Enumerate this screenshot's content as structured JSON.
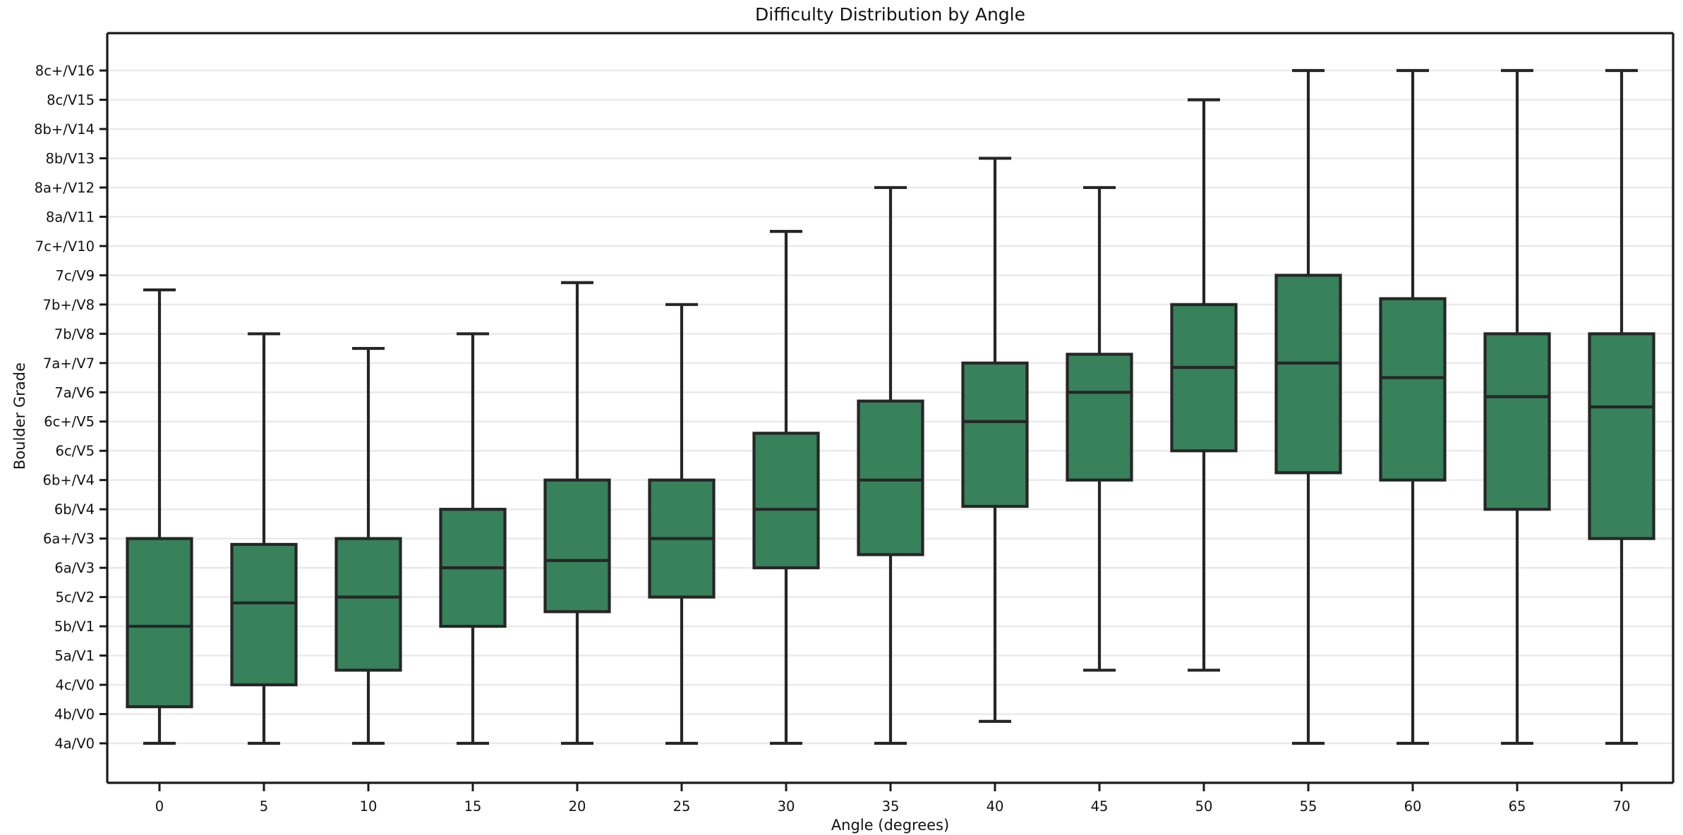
{
  "title": "Difficulty Distribution by Angle",
  "chart_data": {
    "type": "boxplot",
    "title": "Difficulty Distribution by Angle",
    "xlabel": "Angle (degrees)",
    "ylabel": "Boulder Grade",
    "grid": true,
    "legend": "none",
    "x_tick_labels": [
      "0",
      "5",
      "10",
      "15",
      "20",
      "25",
      "30",
      "35",
      "40",
      "45",
      "50",
      "55",
      "60",
      "65",
      "70"
    ],
    "y_tick_labels": [
      "4a/V0",
      "4b/V0",
      "4c/V0",
      "5a/V1",
      "5b/V1",
      "5c/V2",
      "6a/V3",
      "6a+/V3",
      "6b/V4",
      "6b+/V4",
      "6c/V5",
      "6c+/V5",
      "7a/V6",
      "7a+/V7",
      "7b/V8",
      "7b+/V8",
      "7c/V9",
      "7c+/V10",
      "8a/V11",
      "8a+/V12",
      "8b/V13",
      "8b+/V14",
      "8c/V15",
      "8c+/V16"
    ],
    "y_unit": "grade index, 0 = 4a/V0 up to 23 = 8c+/V16",
    "ylim": [
      -1.5,
      24.3
    ],
    "series": [
      {
        "angle": 0,
        "whisker_low": 0,
        "q1": 1.25,
        "median": 4.0,
        "q3": 7.0,
        "whisker_high": 15.5
      },
      {
        "angle": 5,
        "whisker_low": 0,
        "q1": 2.0,
        "median": 4.8,
        "q3": 6.8,
        "whisker_high": 14.0
      },
      {
        "angle": 10,
        "whisker_low": 0,
        "q1": 2.5,
        "median": 5.0,
        "q3": 7.0,
        "whisker_high": 13.5
      },
      {
        "angle": 15,
        "whisker_low": 0,
        "q1": 4.0,
        "median": 6.0,
        "q3": 8.0,
        "whisker_high": 14.0
      },
      {
        "angle": 20,
        "whisker_low": 0,
        "q1": 4.5,
        "median": 6.25,
        "q3": 9.0,
        "whisker_high": 15.75
      },
      {
        "angle": 25,
        "whisker_low": 0,
        "q1": 5.0,
        "median": 7.0,
        "q3": 9.0,
        "whisker_high": 15.0
      },
      {
        "angle": 30,
        "whisker_low": 0,
        "q1": 6.0,
        "median": 8.0,
        "q3": 10.6,
        "whisker_high": 17.5
      },
      {
        "angle": 35,
        "whisker_low": 0,
        "q1": 6.45,
        "median": 9.0,
        "q3": 11.7,
        "whisker_high": 19.0
      },
      {
        "angle": 40,
        "whisker_low": 0.75,
        "q1": 8.1,
        "median": 11.0,
        "q3": 13.0,
        "whisker_high": 20.0
      },
      {
        "angle": 45,
        "whisker_low": 2.5,
        "q1": 9.0,
        "median": 12.0,
        "q3": 13.3,
        "whisker_high": 19.0
      },
      {
        "angle": 50,
        "whisker_low": 2.5,
        "q1": 10.0,
        "median": 12.85,
        "q3": 15.0,
        "whisker_high": 22.0
      },
      {
        "angle": 55,
        "whisker_low": 0,
        "q1": 9.25,
        "median": 13.0,
        "q3": 16.0,
        "whisker_high": 23.0
      },
      {
        "angle": 60,
        "whisker_low": 0,
        "q1": 9.0,
        "median": 12.5,
        "q3": 15.2,
        "whisker_high": 23.0
      },
      {
        "angle": 65,
        "whisker_low": 0,
        "q1": 8.0,
        "median": 11.85,
        "q3": 14.0,
        "whisker_high": 23.0
      },
      {
        "angle": 70,
        "whisker_low": 0,
        "q1": 7.0,
        "median": 11.5,
        "q3": 14.0,
        "whisker_high": 23.0
      }
    ]
  },
  "style": {
    "box_fill": "#37815b",
    "line_color": "#262626",
    "grid_color": "#e9e9e9",
    "spine_color": "#1a1a1a",
    "background": "#ffffff"
  }
}
